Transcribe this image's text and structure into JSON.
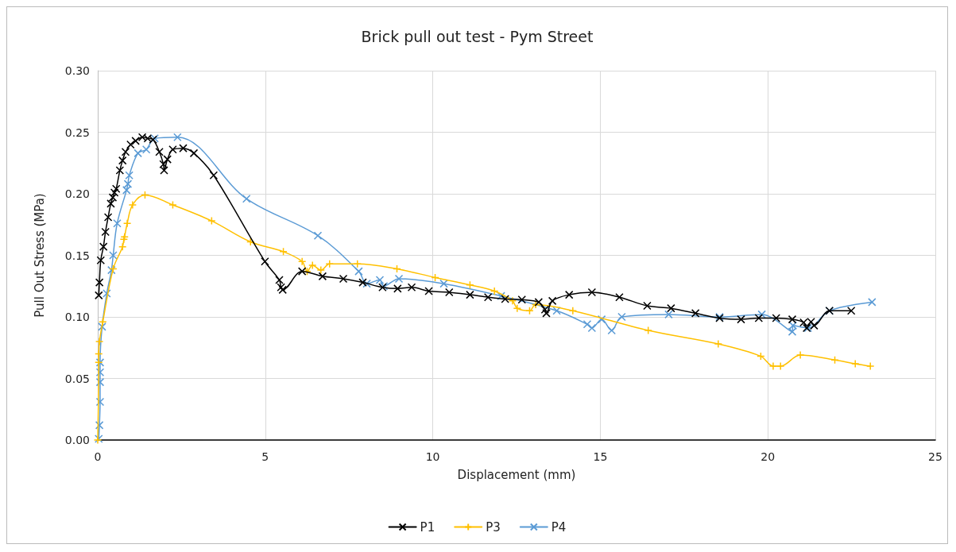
{
  "chart_data": {
    "type": "line",
    "title": "Brick pull out test - Pym Street",
    "xlabel": "Displacement (mm)",
    "ylabel": "Pull Out Stress (MPa)",
    "xlim": [
      0,
      25
    ],
    "xticks": [
      0,
      5,
      10,
      15,
      20,
      25
    ],
    "ylim": [
      0,
      0.3
    ],
    "yticks": [
      {
        "value": 0,
        "label": "0.00"
      },
      {
        "value": 0.05,
        "label": "0.05"
      },
      {
        "value": 0.1,
        "label": "0.10"
      },
      {
        "value": 0.15,
        "label": "0.15"
      },
      {
        "value": 0.2,
        "label": "0.20"
      },
      {
        "value": 0.25,
        "label": "0.25"
      },
      {
        "value": 0.3,
        "label": "0.30"
      }
    ],
    "grid": true,
    "legend": "bottom",
    "line_style": "solid",
    "series": [
      {
        "name": "P1",
        "color": "#000000",
        "marker": "cross",
        "x": [
          0.03,
          0.05,
          0.09,
          0.17,
          0.23,
          0.31,
          0.39,
          0.45,
          0.5,
          0.55,
          0.66,
          0.74,
          0.83,
          0.98,
          1.13,
          1.33,
          1.49,
          1.65,
          1.84,
          1.96,
          1.98,
          2.08,
          2.24,
          2.55,
          2.87,
          3.46,
          4.99,
          5.42,
          5.47,
          5.52,
          6.1,
          6.71,
          7.33,
          7.91,
          8.5,
          8.95,
          9.37,
          9.88,
          10.49,
          11.11,
          11.65,
          12.16,
          12.66,
          13.16,
          13.35,
          13.39,
          13.57,
          14.07,
          14.75,
          15.57,
          16.4,
          17.11,
          17.84,
          18.56,
          19.2,
          19.73,
          20.25,
          20.73,
          21.07,
          21.16,
          21.29,
          21.38,
          21.84,
          22.49
        ],
        "values": [
          0.1175,
          0.128,
          0.146,
          0.157,
          0.169,
          0.181,
          0.192,
          0.197,
          0.201,
          0.204,
          0.219,
          0.227,
          0.234,
          0.24,
          0.243,
          0.246,
          0.245,
          0.244,
          0.234,
          0.224,
          0.219,
          0.228,
          0.236,
          0.237,
          0.233,
          0.215,
          0.145,
          0.13,
          0.124,
          0.122,
          0.137,
          0.133,
          0.131,
          0.128,
          0.124,
          0.123,
          0.124,
          0.121,
          0.12,
          0.118,
          0.116,
          0.1145,
          0.114,
          0.112,
          0.106,
          0.103,
          0.113,
          0.118,
          0.12,
          0.116,
          0.109,
          0.107,
          0.103,
          0.099,
          0.098,
          0.099,
          0.099,
          0.098,
          0.0955,
          0.091,
          0.096,
          0.093,
          0.105,
          0.105
        ]
      },
      {
        "name": "P3",
        "color": "#ffc000",
        "marker": "plus",
        "x": [
          0,
          0.03,
          0.03,
          0.05,
          0.15,
          0.46,
          0.74,
          0.78,
          0.8,
          0.88,
          1.04,
          1.41,
          2.24,
          3.4,
          4.56,
          5.54,
          6.1,
          6.25,
          6.41,
          6.66,
          6.92,
          7.75,
          8.93,
          10.07,
          11.11,
          11.84,
          12.38,
          12.52,
          12.89,
          13.07,
          14.18,
          16.43,
          18.52,
          19.79,
          20.16,
          20.38,
          20.97,
          22.0,
          22.61,
          23.06
        ],
        "values": [
          0,
          0.063,
          0.07,
          0.08,
          0.096,
          0.139,
          0.157,
          0.163,
          0.165,
          0.176,
          0.191,
          0.199,
          0.191,
          0.178,
          0.161,
          0.153,
          0.145,
          0.137,
          0.142,
          0.138,
          0.143,
          0.143,
          0.139,
          0.132,
          0.126,
          0.121,
          0.113,
          0.107,
          0.105,
          0.11,
          0.105,
          0.089,
          0.078,
          0.068,
          0.06,
          0.06,
          0.069,
          0.065,
          0.062,
          0.06
        ]
      },
      {
        "name": "P4",
        "color": "#5b9bd5",
        "marker": "cross",
        "x": [
          0.03,
          0.05,
          0.07,
          0.07,
          0.07,
          0.07,
          0.13,
          0.27,
          0.41,
          0.46,
          0.58,
          0.86,
          0.9,
          0.94,
          1.2,
          1.45,
          1.7,
          2.38,
          4.44,
          6.57,
          7.79,
          8.03,
          8.42,
          8.54,
          8.99,
          10.33,
          12.04,
          13.7,
          14.61,
          14.75,
          15.04,
          15.34,
          15.64,
          17.04,
          18.56,
          19.82,
          20.73,
          20.75,
          21.2,
          21.84,
          23.11
        ],
        "values": [
          0.001,
          0.012,
          0.031,
          0.047,
          0.055,
          0.063,
          0.092,
          0.119,
          0.138,
          0.15,
          0.176,
          0.203,
          0.208,
          0.215,
          0.233,
          0.236,
          0.245,
          0.246,
          0.196,
          0.166,
          0.137,
          0.127,
          0.13,
          0.125,
          0.131,
          0.127,
          0.117,
          0.105,
          0.094,
          0.091,
          0.098,
          0.089,
          0.1,
          0.102,
          0.1,
          0.102,
          0.088,
          0.093,
          0.091,
          0.105,
          0.112
        ]
      }
    ]
  }
}
